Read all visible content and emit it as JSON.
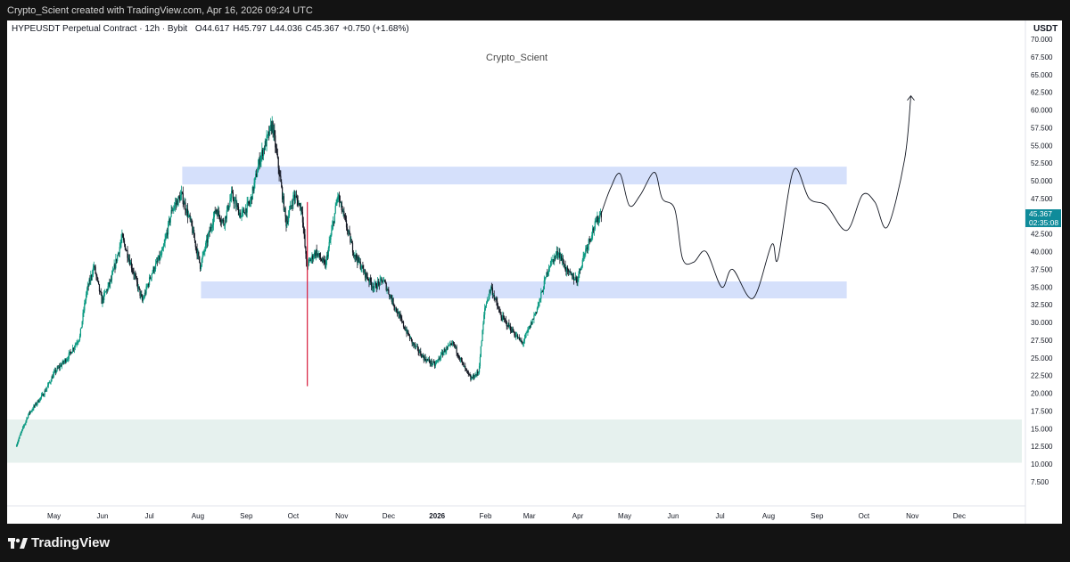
{
  "top_bar": {
    "attribution": "Crypto_Scient created with TradingView.com, Apr 16, 2026 09:24 UTC"
  },
  "header": {
    "symbol": "HYPEUSDT Perpetual Contract · 12h · Bybit",
    "open_label": "O",
    "open": "44.617",
    "high_label": "H",
    "high": "45.797",
    "low_label": "L",
    "low": "44.036",
    "close_label": "C",
    "close": "45.367",
    "change": "+0.750 (+1.68%)"
  },
  "watermark": "Crypto_Scient",
  "price_axis": {
    "currency": "USDT"
  },
  "price_tag": {
    "price": "45.367",
    "countdown": "02:35:08",
    "color": "#0f8b9a"
  },
  "footer": {
    "brand": "TradingView"
  },
  "chart_data": {
    "type": "candlestick",
    "interval": "12h",
    "y_ticks": [
      "7.500",
      "10.000",
      "12.500",
      "15.000",
      "17.500",
      "20.000",
      "22.500",
      "25.000",
      "27.500",
      "30.000",
      "32.500",
      "35.000",
      "37.500",
      "40.000",
      "42.500",
      "45.000",
      "47.500",
      "50.000",
      "52.500",
      "55.000",
      "57.500",
      "60.000",
      "62.500",
      "65.000",
      "67.500",
      "70.000"
    ],
    "ylim": [
      7.5,
      70
    ],
    "x_ticks": [
      {
        "label": "May",
        "date": "2025-05-01"
      },
      {
        "label": "Jun",
        "date": "2025-06-01"
      },
      {
        "label": "Jul",
        "date": "2025-07-01"
      },
      {
        "label": "Aug",
        "date": "2025-08-01"
      },
      {
        "label": "Sep",
        "date": "2025-09-01"
      },
      {
        "label": "Oct",
        "date": "2025-10-01"
      },
      {
        "label": "Nov",
        "date": "2025-11-01"
      },
      {
        "label": "Dec",
        "date": "2025-12-01"
      },
      {
        "label": "2026",
        "date": "2026-01-01"
      },
      {
        "label": "Feb",
        "date": "2026-02-01"
      },
      {
        "label": "Mar",
        "date": "2026-03-01"
      },
      {
        "label": "Apr",
        "date": "2026-04-01"
      },
      {
        "label": "May",
        "date": "2026-05-01"
      },
      {
        "label": "Jun",
        "date": "2026-06-01"
      },
      {
        "label": "Jul",
        "date": "2026-07-01"
      },
      {
        "label": "Aug",
        "date": "2026-08-01"
      },
      {
        "label": "Sep",
        "date": "2026-09-01"
      },
      {
        "label": "Oct",
        "date": "2026-10-01"
      },
      {
        "label": "Nov",
        "date": "2026-11-01"
      },
      {
        "label": "Dec",
        "date": "2026-12-01"
      }
    ],
    "price_path": [
      {
        "date": "2025-04-07",
        "price": 12.5
      },
      {
        "date": "2025-04-15",
        "price": 17
      },
      {
        "date": "2025-04-25",
        "price": 20
      },
      {
        "date": "2025-05-02",
        "price": 23
      },
      {
        "date": "2025-05-10",
        "price": 25
      },
      {
        "date": "2025-05-18",
        "price": 28
      },
      {
        "date": "2025-05-22",
        "price": 34
      },
      {
        "date": "2025-05-27",
        "price": 38
      },
      {
        "date": "2025-06-01",
        "price": 33
      },
      {
        "date": "2025-06-07",
        "price": 36
      },
      {
        "date": "2025-06-14",
        "price": 42
      },
      {
        "date": "2025-06-20",
        "price": 38
      },
      {
        "date": "2025-06-27",
        "price": 33
      },
      {
        "date": "2025-07-03",
        "price": 37
      },
      {
        "date": "2025-07-10",
        "price": 40
      },
      {
        "date": "2025-07-16",
        "price": 46
      },
      {
        "date": "2025-07-22",
        "price": 48
      },
      {
        "date": "2025-07-28",
        "price": 44
      },
      {
        "date": "2025-08-03",
        "price": 38
      },
      {
        "date": "2025-08-08",
        "price": 42
      },
      {
        "date": "2025-08-13",
        "price": 46
      },
      {
        "date": "2025-08-18",
        "price": 44
      },
      {
        "date": "2025-08-23",
        "price": 48
      },
      {
        "date": "2025-08-29",
        "price": 45
      },
      {
        "date": "2025-09-04",
        "price": 47
      },
      {
        "date": "2025-09-10",
        "price": 53
      },
      {
        "date": "2025-09-15",
        "price": 56
      },
      {
        "date": "2025-09-18",
        "price": 58
      },
      {
        "date": "2025-09-22",
        "price": 52
      },
      {
        "date": "2025-09-27",
        "price": 44
      },
      {
        "date": "2025-10-02",
        "price": 48
      },
      {
        "date": "2025-10-07",
        "price": 46
      },
      {
        "date": "2025-10-10",
        "price": 38
      },
      {
        "date": "2025-10-16",
        "price": 40
      },
      {
        "date": "2025-10-22",
        "price": 38
      },
      {
        "date": "2025-10-27",
        "price": 44
      },
      {
        "date": "2025-10-30",
        "price": 48
      },
      {
        "date": "2025-11-04",
        "price": 44
      },
      {
        "date": "2025-11-09",
        "price": 40
      },
      {
        "date": "2025-11-16",
        "price": 37
      },
      {
        "date": "2025-11-22",
        "price": 35
      },
      {
        "date": "2025-11-28",
        "price": 36
      },
      {
        "date": "2025-12-04",
        "price": 33
      },
      {
        "date": "2025-12-10",
        "price": 30
      },
      {
        "date": "2025-12-17",
        "price": 27
      },
      {
        "date": "2025-12-24",
        "price": 25
      },
      {
        "date": "2025-12-31",
        "price": 24
      },
      {
        "date": "2026-01-06",
        "price": 26
      },
      {
        "date": "2026-01-12",
        "price": 27
      },
      {
        "date": "2026-01-18",
        "price": 24
      },
      {
        "date": "2026-01-23",
        "price": 22
      },
      {
        "date": "2026-01-28",
        "price": 23
      },
      {
        "date": "2026-02-01",
        "price": 32
      },
      {
        "date": "2026-02-05",
        "price": 35
      },
      {
        "date": "2026-02-11",
        "price": 31
      },
      {
        "date": "2026-02-18",
        "price": 29
      },
      {
        "date": "2026-02-25",
        "price": 27
      },
      {
        "date": "2026-03-03",
        "price": 30
      },
      {
        "date": "2026-03-08",
        "price": 33
      },
      {
        "date": "2026-03-14",
        "price": 38
      },
      {
        "date": "2026-03-20",
        "price": 40
      },
      {
        "date": "2026-03-26",
        "price": 37
      },
      {
        "date": "2026-04-01",
        "price": 36
      },
      {
        "date": "2026-04-06",
        "price": 40
      },
      {
        "date": "2026-04-11",
        "price": 43
      },
      {
        "date": "2026-04-16",
        "price": 45.4
      }
    ],
    "projection": [
      {
        "date": "2026-04-16",
        "price": 45.4
      },
      {
        "date": "2026-04-22",
        "price": 49
      },
      {
        "date": "2026-04-28",
        "price": 51
      },
      {
        "date": "2026-05-04",
        "price": 46.5
      },
      {
        "date": "2026-05-11",
        "price": 48
      },
      {
        "date": "2026-05-20",
        "price": 51.2
      },
      {
        "date": "2026-05-25",
        "price": 47.5
      },
      {
        "date": "2026-06-02",
        "price": 46
      },
      {
        "date": "2026-06-07",
        "price": 39
      },
      {
        "date": "2026-06-14",
        "price": 38.5
      },
      {
        "date": "2026-06-22",
        "price": 40
      },
      {
        "date": "2026-07-02",
        "price": 35
      },
      {
        "date": "2026-07-09",
        "price": 37.5
      },
      {
        "date": "2026-07-22",
        "price": 33.4
      },
      {
        "date": "2026-08-03",
        "price": 41
      },
      {
        "date": "2026-08-07",
        "price": 39
      },
      {
        "date": "2026-08-17",
        "price": 51.5
      },
      {
        "date": "2026-08-27",
        "price": 47.5
      },
      {
        "date": "2026-09-07",
        "price": 46.5
      },
      {
        "date": "2026-09-20",
        "price": 43
      },
      {
        "date": "2026-09-30",
        "price": 48
      },
      {
        "date": "2026-10-08",
        "price": 47
      },
      {
        "date": "2026-10-16",
        "price": 43.5
      },
      {
        "date": "2026-10-27",
        "price": 53
      },
      {
        "date": "2026-10-31",
        "price": 62
      }
    ],
    "spike_wick": {
      "date": "2025-10-10",
      "low": 21,
      "high": 47
    },
    "zones": [
      {
        "name": "resistance",
        "from": "2025-07-22",
        "to": "2026-09-20",
        "low": 49.5,
        "high": 52,
        "color": "#d5e0fb"
      },
      {
        "name": "support",
        "from": "2025-08-03",
        "to": "2026-09-20",
        "low": 33.4,
        "high": 35.8,
        "color": "#d5e0fb"
      },
      {
        "name": "demand",
        "from": "2025-04-01",
        "to": "2027-01-10",
        "low": 10.2,
        "high": 16.3,
        "color": "#e6f1ee"
      }
    ],
    "x_range": {
      "from": "2025-04-01",
      "to": "2027-01-10"
    },
    "colors": {
      "up": "#089981",
      "down": "#131722",
      "projection": "#131722"
    }
  }
}
